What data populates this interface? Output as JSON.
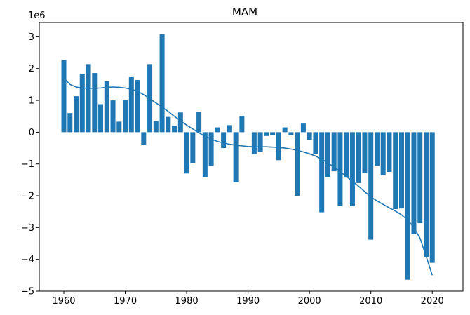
{
  "chart_data": {
    "type": "bar",
    "title": "MAM",
    "xlabel": "",
    "ylabel": "",
    "y_offset_label": "1e6",
    "xlim": [
      1956,
      2025
    ],
    "ylim": [
      -5000000,
      3450000
    ],
    "x_ticks": [
      1960,
      1970,
      1980,
      1990,
      2000,
      2010,
      2020
    ],
    "y_ticks": [
      -5,
      -4,
      -3,
      -2,
      -1,
      0,
      1,
      2,
      3
    ],
    "grid": false,
    "bar_color": "#1f77b4",
    "line_color": "#1f77b4",
    "x": [
      1960,
      1961,
      1962,
      1963,
      1964,
      1965,
      1966,
      1967,
      1968,
      1969,
      1970,
      1971,
      1972,
      1973,
      1974,
      1975,
      1976,
      1977,
      1978,
      1979,
      1980,
      1981,
      1982,
      1983,
      1984,
      1985,
      1986,
      1987,
      1988,
      1989,
      1990,
      1991,
      1992,
      1993,
      1994,
      1995,
      1996,
      1997,
      1998,
      1999,
      2000,
      2001,
      2002,
      2003,
      2004,
      2005,
      2006,
      2007,
      2008,
      2009,
      2010,
      2011,
      2012,
      2013,
      2014,
      2015,
      2016,
      2017,
      2018,
      2019,
      2020
    ],
    "values": [
      2270000,
      600000,
      1130000,
      1840000,
      2140000,
      1860000,
      880000,
      1600000,
      1000000,
      330000,
      1000000,
      1730000,
      1640000,
      -410000,
      2140000,
      350000,
      3080000,
      480000,
      200000,
      620000,
      -1300000,
      -980000,
      640000,
      -1420000,
      -1060000,
      150000,
      -500000,
      220000,
      -1580000,
      510000,
      0,
      -690000,
      -630000,
      -120000,
      -90000,
      -880000,
      150000,
      -100000,
      -2000000,
      270000,
      -240000,
      -690000,
      -2520000,
      -1410000,
      -1230000,
      -2330000,
      -1430000,
      -2330000,
      -1600000,
      -1290000,
      -3380000,
      -1060000,
      -1360000,
      -1250000,
      -2420000,
      -2400000,
      -4640000,
      -3210000,
      -2860000,
      -3930000,
      -4110000
    ],
    "trend": {
      "x": [
        1960,
        1961,
        1962,
        1963,
        1964,
        1965,
        1966,
        1967,
        1968,
        1969,
        1970,
        1971,
        1972,
        1973,
        1974,
        1975,
        1976,
        1977,
        1978,
        1979,
        1980,
        1981,
        1982,
        1983,
        1984,
        1985,
        1986,
        1987,
        1988,
        1989,
        1990,
        1991,
        1992,
        1993,
        1994,
        1995,
        1996,
        1997,
        1998,
        1999,
        2000,
        2001,
        2002,
        2003,
        2004,
        2005,
        2006,
        2007,
        2008,
        2009,
        2010,
        2011,
        2012,
        2013,
        2014,
        2015,
        2016,
        2017,
        2018,
        2019,
        2020
      ],
      "values": [
        1700000,
        1500000,
        1420000,
        1390000,
        1380000,
        1380000,
        1390000,
        1410000,
        1420000,
        1410000,
        1390000,
        1350000,
        1290000,
        1180000,
        1050000,
        920000,
        790000,
        650000,
        500000,
        360000,
        220000,
        100000,
        -20000,
        -130000,
        -220000,
        -290000,
        -340000,
        -380000,
        -410000,
        -430000,
        -450000,
        -460000,
        -460000,
        -460000,
        -470000,
        -480000,
        -500000,
        -530000,
        -570000,
        -620000,
        -680000,
        -750000,
        -850000,
        -970000,
        -1100000,
        -1240000,
        -1390000,
        -1540000,
        -1700000,
        -1870000,
        -2040000,
        -2160000,
        -2270000,
        -2380000,
        -2480000,
        -2600000,
        -2760000,
        -3000000,
        -3330000,
        -3900000,
        -4500000
      ]
    }
  }
}
